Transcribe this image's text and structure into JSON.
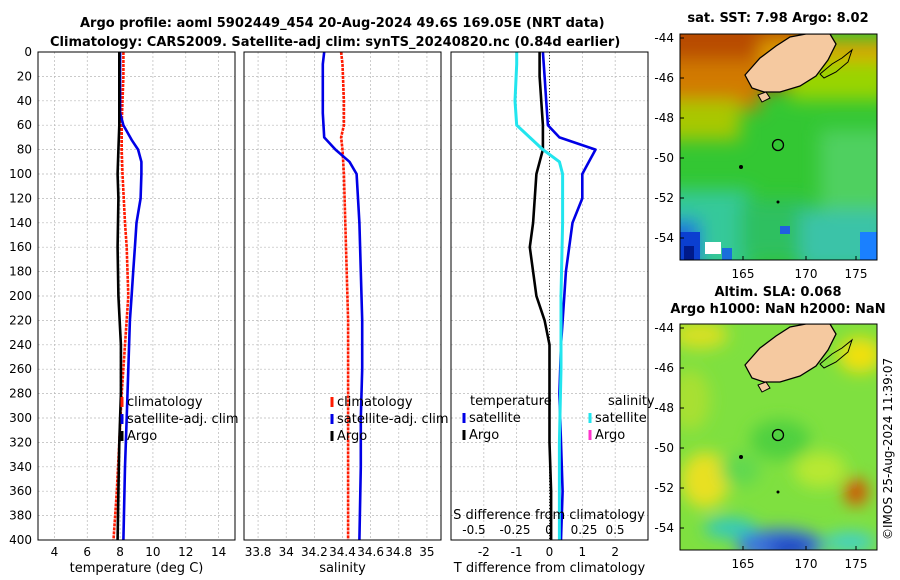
{
  "header": {
    "line1": "Argo profile: aoml 5902449_454 20-Aug-2024 49.6S 169.05E (NRT data)",
    "line2": "Climatology: CARS2009. Satellite-adj clim: synTS_20240820.nc (0.84d earlier)"
  },
  "colors": {
    "climatology": "#ff1a00",
    "satellite": "#0000e6",
    "argo": "#000000",
    "salinity_sat": "#22e5ee",
    "salinity_argo": "#ff33cc",
    "grid": "#b8b8b8",
    "land": "#f5c9a0"
  },
  "chart_data": [
    {
      "type": "line",
      "name": "temperature-profile",
      "xlabel": "temperature (deg C)",
      "xlim": [
        3,
        15
      ],
      "xticks": [
        4,
        6,
        8,
        10,
        12,
        14
      ],
      "ylim": [
        0,
        400
      ],
      "yticks": [
        0,
        20,
        40,
        60,
        80,
        100,
        120,
        140,
        160,
        180,
        200,
        220,
        240,
        260,
        280,
        300,
        320,
        340,
        360,
        380,
        400
      ],
      "legend": [
        "climatology",
        "satellite-adj. clim",
        "Argo"
      ],
      "series": [
        {
          "name": "climatology",
          "depth": [
            0,
            20,
            40,
            60,
            80,
            100,
            140,
            160,
            200,
            240,
            280,
            320,
            360,
            400
          ],
          "values": [
            8.2,
            8.2,
            8.15,
            8.1,
            8.1,
            8.15,
            8.3,
            8.4,
            8.5,
            8.3,
            8.1,
            7.95,
            7.8,
            7.6
          ]
        },
        {
          "name": "satellite-adj. clim",
          "depth": [
            0,
            50,
            60,
            72,
            80,
            90,
            100,
            120,
            140,
            160,
            180,
            200,
            220,
            260,
            300,
            340,
            400
          ],
          "values": [
            8.0,
            8.0,
            8.2,
            8.7,
            9.1,
            9.3,
            9.3,
            9.25,
            9.0,
            8.9,
            8.8,
            8.7,
            8.6,
            8.5,
            8.4,
            8.3,
            8.2
          ]
        },
        {
          "name": "Argo",
          "depth": [
            0,
            20,
            40,
            60,
            80,
            100,
            120,
            160,
            200,
            240,
            280,
            320,
            360,
            400
          ],
          "values": [
            7.95,
            7.95,
            7.95,
            7.95,
            7.9,
            7.85,
            7.9,
            7.85,
            7.9,
            8.05,
            8.05,
            7.95,
            7.9,
            7.85
          ]
        }
      ]
    },
    {
      "type": "line",
      "name": "salinity-profile",
      "xlabel": "salinity",
      "xlim": [
        33.7,
        35.1
      ],
      "xticks": [
        33.8,
        34,
        34.2,
        34.4,
        34.6,
        34.8,
        35
      ],
      "xtick_labels": [
        "33.8",
        "34",
        "34.2",
        "34.4",
        "34.6",
        "34.8",
        "35"
      ],
      "ylim": [
        0,
        400
      ],
      "legend": [
        "climatology",
        "satellite-adj. clim",
        "Argo"
      ],
      "series": [
        {
          "name": "climatology",
          "depth": [
            0,
            10,
            40,
            60,
            70,
            80,
            100,
            140,
            180,
            220,
            280,
            340,
            400
          ],
          "values": [
            34.39,
            34.4,
            34.41,
            34.41,
            34.39,
            34.4,
            34.41,
            34.42,
            34.43,
            34.44,
            34.44,
            34.44,
            34.44
          ]
        },
        {
          "name": "satellite-adj. clim",
          "depth": [
            0,
            10,
            50,
            70,
            80,
            90,
            100,
            140,
            180,
            220,
            260,
            300,
            340,
            400
          ],
          "values": [
            34.27,
            34.26,
            34.26,
            34.27,
            34.35,
            34.45,
            34.5,
            34.52,
            34.53,
            34.54,
            34.54,
            34.53,
            34.53,
            34.52
          ]
        }
      ]
    },
    {
      "type": "line",
      "name": "difference-profile",
      "xlabel": "T difference from climatology",
      "top_xlabel": "S difference from climatology",
      "xlim": [
        -3,
        3
      ],
      "xticks": [
        -2,
        -1,
        0,
        1,
        2
      ],
      "xtick_labels": [
        "-2",
        "-1",
        "0",
        "1",
        "2"
      ],
      "top_xticks": [
        "-0.5",
        "-0.25",
        "0",
        "0.25",
        "0.5"
      ],
      "ylim": [
        0,
        400
      ],
      "legend_temperature_title": "temperature",
      "legend_salinity_title": "salinity",
      "legend_temperature": [
        "satellite",
        "Argo"
      ],
      "legend_salinity": [
        "satellite",
        "Argo"
      ],
      "series": [
        {
          "name": "temperature satellite",
          "depth": [
            0,
            20,
            40,
            60,
            70,
            80,
            90,
            100,
            120,
            140,
            160,
            180,
            200,
            240,
            280,
            320,
            360,
            400
          ],
          "values": [
            -0.2,
            -0.15,
            -0.1,
            -0.05,
            0.3,
            1.4,
            1.2,
            1.0,
            1.0,
            0.7,
            0.6,
            0.5,
            0.45,
            0.35,
            0.3,
            0.35,
            0.4,
            0.35
          ]
        },
        {
          "name": "temperature Argo",
          "depth": [
            0,
            20,
            60,
            80,
            100,
            140,
            160,
            180,
            200,
            220,
            240,
            280,
            320,
            360,
            400
          ],
          "values": [
            -0.3,
            -0.3,
            -0.2,
            -0.2,
            -0.4,
            -0.5,
            -0.6,
            -0.5,
            -0.4,
            -0.15,
            0.0,
            0.0,
            0.0,
            0.05,
            0.05
          ]
        },
        {
          "name": "salinity satellite",
          "depth": [
            0,
            10,
            40,
            60,
            80,
            90,
            100,
            140,
            200,
            260,
            320,
            400
          ],
          "values": [
            -1.0,
            -1.0,
            -1.05,
            -1.0,
            -0.2,
            0.3,
            0.4,
            0.4,
            0.35,
            0.35,
            0.3,
            0.3
          ]
        }
      ]
    }
  ],
  "maps": {
    "sst": {
      "title": "sat. SST: 7.98 Argo: 8.02",
      "lon_ticks": [
        "165",
        "170",
        "175"
      ],
      "lat_ticks": [
        "-44",
        "-46",
        "-48",
        "-50",
        "-52",
        "-54"
      ]
    },
    "sla": {
      "title1": "Altim. SLA: 0.068",
      "title2": "Argo h1000: NaN h2000: NaN",
      "lon_ticks": [
        "165",
        "170",
        "175"
      ],
      "lat_ticks": [
        "-44",
        "-46",
        "-48",
        "-50",
        "-52",
        "-54"
      ]
    },
    "float_position": {
      "lon": 169.05,
      "lat": -49.6
    }
  },
  "credit": "©IMOS 25-Aug-2024 11:39:07"
}
